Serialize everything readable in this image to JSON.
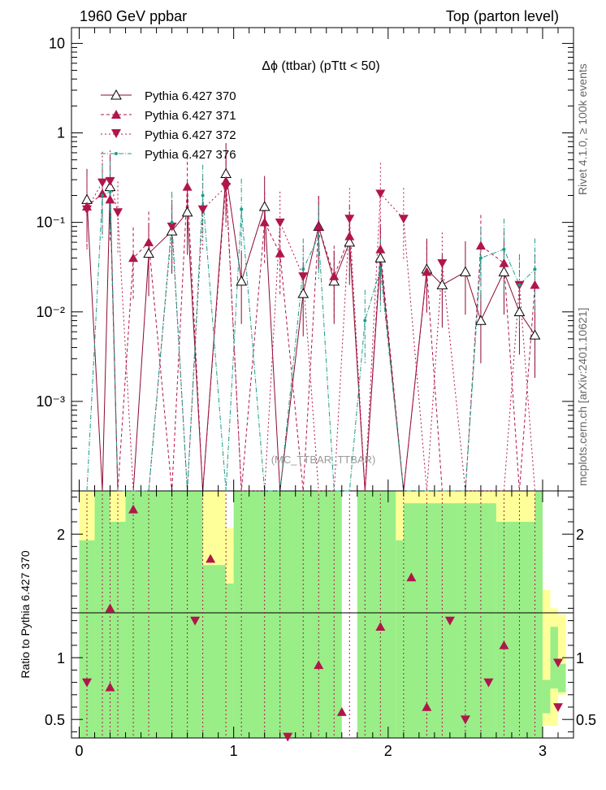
{
  "header": {
    "left": "1960 GeV ppbar",
    "right": "Top (parton level)"
  },
  "side_labels": {
    "rivet": "Rivet 4.1.0, ≥ 100k events",
    "site": "mcplots.cern.ch [arXiv:2401.10621]"
  },
  "chart_data": {
    "type": "line",
    "title": "Δϕ (ttbar) (pTtt < 50)",
    "watermark": "(MC_TTBAR_TTBAR)",
    "x": [
      0.05,
      0.15,
      0.2,
      0.25,
      0.35,
      0.45,
      0.6,
      0.7,
      0.8,
      0.95,
      1.05,
      1.2,
      1.3,
      1.45,
      1.55,
      1.65,
      1.75,
      1.85,
      1.95,
      2.1,
      2.25,
      2.35,
      2.5,
      2.6,
      2.75,
      2.85,
      2.95
    ],
    "xlim": [
      -0.05,
      3.2
    ],
    "xticks": [
      0,
      1,
      2,
      3
    ],
    "top_panel": {
      "yscale": "log",
      "ylim": [
        0.0001,
        15
      ],
      "ytick_labels": [
        {
          "value": 10,
          "label": "10"
        },
        {
          "value": 1,
          "label": "1"
        },
        {
          "value": 0.1,
          "label": "10⁻¹"
        },
        {
          "value": 0.01,
          "label": "10⁻²"
        },
        {
          "value": 0.001,
          "label": "10⁻³"
        }
      ]
    },
    "series": [
      {
        "name": "Pythia 6.427 370",
        "marker": "open-triangle-up",
        "color": "#8b0a2e",
        "dash": "solid",
        "values": [
          0.18,
          0.0001,
          0.25,
          0.0001,
          0.0001,
          0.045,
          0.08,
          0.13,
          0.0001,
          0.35,
          0.022,
          0.15,
          0.0001,
          0.016,
          0.09,
          0.022,
          0.06,
          0.0001,
          0.04,
          0.0001,
          0.03,
          0.02,
          0.028,
          0.008,
          0.028,
          0.01,
          0.0055
        ]
      },
      {
        "name": "Pythia 6.427 371",
        "marker": "filled-triangle-up",
        "color": "#b0164b",
        "dash": "4,3",
        "values": [
          0.15,
          0.21,
          0.18,
          0.0001,
          0.04,
          0.06,
          0.0001,
          0.25,
          0.0001,
          0.29,
          0.0001,
          0.1,
          0.045,
          0.0001,
          0.09,
          0.025,
          0.07,
          0.0001,
          0.05,
          0.0001,
          0.028,
          0.0001,
          0.0001,
          0.055,
          0.035,
          0.0001,
          0.02
        ]
      },
      {
        "name": "Pythia 6.427 372",
        "marker": "filled-triangle-down",
        "color": "#b0164b",
        "dash": "2,3",
        "values": [
          0.14,
          0.28,
          0.29,
          0.13,
          0.0001,
          0.0001,
          0.09,
          0.0001,
          0.14,
          0.25,
          0.0001,
          0.0001,
          0.1,
          0.025,
          0.0001,
          0.0001,
          0.11,
          0.0001,
          0.21,
          0.11,
          0.0001,
          0.035,
          0.0001,
          0.0001,
          0.0001,
          0.02,
          0.0001
        ]
      },
      {
        "name": "Pythia 6.427 376",
        "marker": "dot",
        "color": "#1a9e8a",
        "dash": "6,2,1,2",
        "values": [
          0.0001,
          0.2,
          0.22,
          0.0001,
          0.0001,
          0.0001,
          0.1,
          0.0001,
          0.2,
          0.0001,
          0.14,
          0.0001,
          0.0001,
          0.03,
          0.07,
          0.0001,
          0.0001,
          0.008,
          0.03,
          0.0001,
          0.0001,
          0.0001,
          0.0001,
          0.04,
          0.05,
          0.02,
          0.03
        ]
      }
    ],
    "ratio_panel": {
      "ylabel": "Ratio to Pythia 6.427 370",
      "ylim": [
        0.35,
        2.35
      ],
      "ytick_labels": [
        {
          "value": 0.5,
          "label": "0.5"
        },
        {
          "value": 1,
          "label": "1"
        },
        {
          "value": 2,
          "label": "2"
        }
      ],
      "points": [
        {
          "x": 0.05,
          "y": 0.8,
          "marker": "filled-triangle-down"
        },
        {
          "x": 0.2,
          "y": 1.4,
          "marker": "filled-triangle-up"
        },
        {
          "x": 0.2,
          "y": 0.76,
          "marker": "filled-triangle-up"
        },
        {
          "x": 0.35,
          "y": 2.2,
          "marker": "filled-triangle-up"
        },
        {
          "x": 0.75,
          "y": 1.3,
          "marker": "filled-triangle-down"
        },
        {
          "x": 0.85,
          "y": 1.8,
          "marker": "filled-triangle-up"
        },
        {
          "x": 1.35,
          "y": 0.36,
          "marker": "filled-triangle-down"
        },
        {
          "x": 1.55,
          "y": 0.94,
          "marker": "filled-triangle-up"
        },
        {
          "x": 1.7,
          "y": 0.56,
          "marker": "filled-triangle-up"
        },
        {
          "x": 1.95,
          "y": 1.25,
          "marker": "filled-triangle-up"
        },
        {
          "x": 2.15,
          "y": 1.65,
          "marker": "filled-triangle-up"
        },
        {
          "x": 2.25,
          "y": 0.6,
          "marker": "filled-triangle-up"
        },
        {
          "x": 2.4,
          "y": 1.3,
          "marker": "filled-triangle-down"
        },
        {
          "x": 2.5,
          "y": 0.5,
          "marker": "filled-triangle-down"
        },
        {
          "x": 2.65,
          "y": 0.8,
          "marker": "filled-triangle-down"
        },
        {
          "x": 2.75,
          "y": 1.1,
          "marker": "filled-triangle-up"
        },
        {
          "x": 3.1,
          "y": 0.6,
          "marker": "filled-triangle-down"
        },
        {
          "x": 3.1,
          "y": 0.96,
          "marker": "filled-triangle-down"
        }
      ],
      "bands": [
        {
          "x0": 0.0,
          "x1": 0.1,
          "lo": 0.35,
          "hi": 2.35,
          "stat_lo": 0.35,
          "stat_hi": 1.95
        },
        {
          "x0": 0.1,
          "x1": 0.2,
          "lo": 0.35,
          "hi": 2.35,
          "stat_lo": 0.35,
          "stat_hi": 2.35
        },
        {
          "x0": 0.2,
          "x1": 0.3,
          "lo": 0.35,
          "hi": 2.35,
          "stat_lo": 0.35,
          "stat_hi": 2.1
        },
        {
          "x0": 0.3,
          "x1": 0.8,
          "lo": 0.35,
          "hi": 2.35,
          "stat_lo": 0.35,
          "stat_hi": 2.35
        },
        {
          "x0": 0.8,
          "x1": 0.95,
          "lo": 0.35,
          "hi": 2.35,
          "stat_lo": 0.35,
          "stat_hi": 1.75
        },
        {
          "x0": 0.95,
          "x1": 1.0,
          "lo": 0.35,
          "hi": 2.05,
          "stat_lo": 0.35,
          "stat_hi": 1.6
        },
        {
          "x0": 1.0,
          "x1": 1.7,
          "lo": 0.35,
          "hi": 2.35,
          "stat_lo": 0.35,
          "stat_hi": 2.35
        },
        {
          "x0": 1.8,
          "x1": 2.05,
          "lo": 0.35,
          "hi": 2.35,
          "stat_lo": 0.35,
          "stat_hi": 2.35
        },
        {
          "x0": 2.05,
          "x1": 2.1,
          "lo": 0.35,
          "hi": 2.35,
          "stat_lo": 0.35,
          "stat_hi": 1.95
        },
        {
          "x0": 2.1,
          "x1": 2.7,
          "lo": 0.35,
          "hi": 2.35,
          "stat_lo": 0.35,
          "stat_hi": 2.25
        },
        {
          "x0": 2.7,
          "x1": 2.95,
          "lo": 0.35,
          "hi": 2.35,
          "stat_lo": 0.35,
          "stat_hi": 2.1
        },
        {
          "x0": 2.95,
          "x1": 3.0,
          "lo": 0.35,
          "hi": 2.35,
          "stat_lo": 0.35,
          "stat_hi": 2.35
        },
        {
          "x0": 3.0,
          "x1": 3.05,
          "lo": 0.45,
          "hi": 1.55,
          "stat_lo": 0.55,
          "stat_hi": 0.82
        },
        {
          "x0": 3.05,
          "x1": 3.1,
          "lo": 0.45,
          "hi": 1.4,
          "stat_lo": 0.75,
          "stat_hi": 1.25
        },
        {
          "x0": 3.1,
          "x1": 3.15,
          "lo": 0.7,
          "hi": 1.35,
          "stat_lo": 0.72,
          "stat_hi": 0.95
        }
      ]
    },
    "grid": false,
    "legend_position": "top-left"
  }
}
